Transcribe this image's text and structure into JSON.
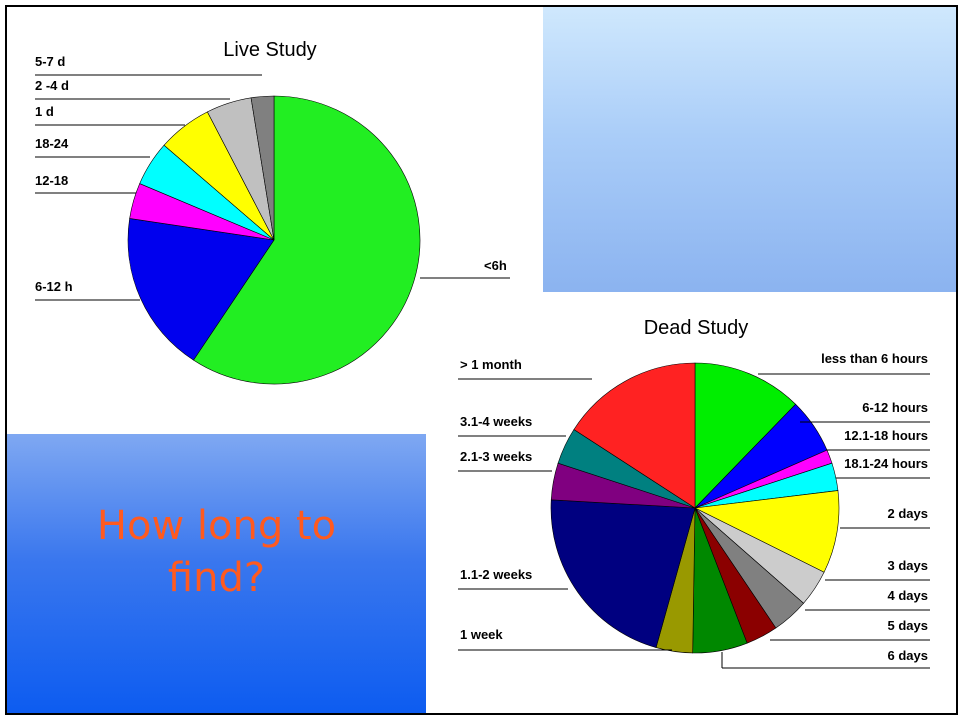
{
  "slide": {
    "question_text": "How long to\nfind?",
    "colors": {
      "panel_sky": "#b8d8fa",
      "panel_blue": "#2e6ff0",
      "question_text": "#ff5a1f"
    }
  },
  "chart_data": [
    {
      "type": "pie",
      "title": "Live Study",
      "categories": [
        "<6h",
        "6-12 h",
        "12-18",
        "18-24",
        "1 d",
        "2 -4 d",
        "5-7 d"
      ],
      "values": [
        59,
        18,
        4,
        5,
        6,
        5,
        2.5
      ],
      "colors": [
        "#22ee22",
        "#0000ee",
        "#ff00ff",
        "#00ffff",
        "#ffff00",
        "#c0c0c0",
        "#808080"
      ]
    },
    {
      "type": "pie",
      "title": "Dead Study",
      "categories": [
        "less than 6 hours",
        "6-12 hours",
        "12.1-18 hours",
        "18.1-24 hours",
        "2 days",
        "3 days",
        "4 days",
        "5 days",
        "6 days",
        "1 week",
        "1.1-2 weeks",
        "2.1-3 weeks",
        "3.1-4 weeks",
        "> 1 month"
      ],
      "values": [
        12,
        6,
        1.5,
        3,
        9,
        4,
        4,
        3.5,
        6,
        4,
        21,
        4,
        4,
        15.5
      ],
      "colors": [
        "#00ee00",
        "#0000ff",
        "#ff00ff",
        "#00ffff",
        "#ffff00",
        "#cccccc",
        "#808080",
        "#8b0000",
        "#008800",
        "#999900",
        "#000080",
        "#800080",
        "#008080",
        "#ff2222"
      ]
    }
  ]
}
